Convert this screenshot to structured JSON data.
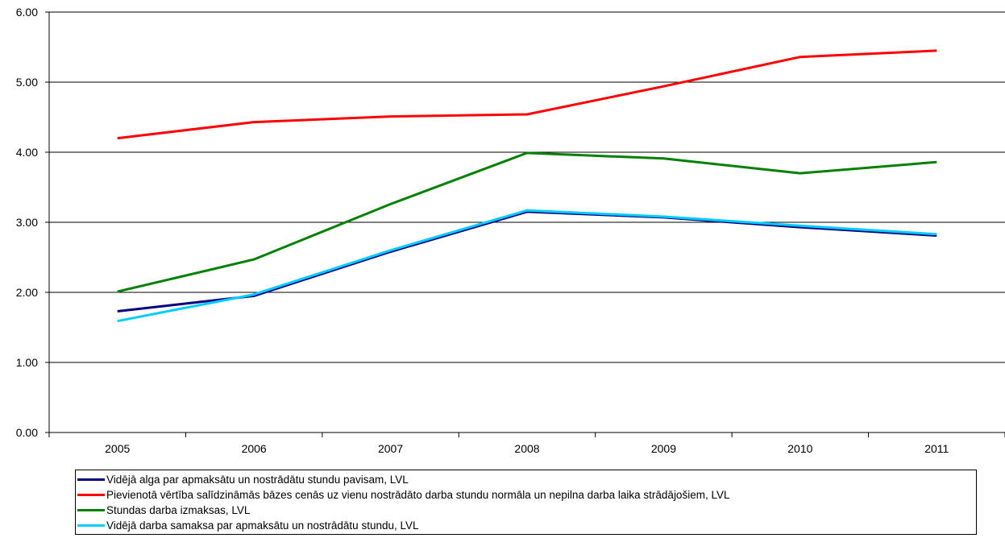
{
  "chart_data": {
    "type": "line",
    "categories": [
      "2005",
      "2006",
      "2007",
      "2008",
      "2009",
      "2010",
      "2011"
    ],
    "ylim": [
      0,
      6
    ],
    "yticks": [
      "0.00",
      "1.00",
      "2.00",
      "3.00",
      "4.00",
      "5.00",
      "6.00"
    ],
    "grid": "horizontal",
    "legend_position": "bottom",
    "series": [
      {
        "name": "Vidējā alga par apmaksātu un nostrādātu stundu pavisam, LVL",
        "color": "#000080",
        "values": [
          1.73,
          1.95,
          2.58,
          3.15,
          3.07,
          2.93,
          2.81
        ]
      },
      {
        "name": "Pievienotā vērtība salīdzināmās bāzes cenās uz vienu nostrādāto darba stundu normāla un nepilna darba laika strādājošiem, LVL",
        "color": "#ff0000",
        "values": [
          4.2,
          4.43,
          4.51,
          4.54,
          4.94,
          5.36,
          5.45
        ]
      },
      {
        "name": "Stundas darba izmaksas, LVL",
        "color": "#008000",
        "values": [
          2.01,
          2.47,
          3.26,
          3.99,
          3.91,
          3.7,
          3.86
        ]
      },
      {
        "name": "Vidējā darba samaksa par apmaksātu un nostrādātu stundu, LVL",
        "color": "#00ccff",
        "values": [
          1.59,
          1.97,
          2.6,
          3.17,
          3.08,
          2.95,
          2.83
        ]
      }
    ]
  }
}
